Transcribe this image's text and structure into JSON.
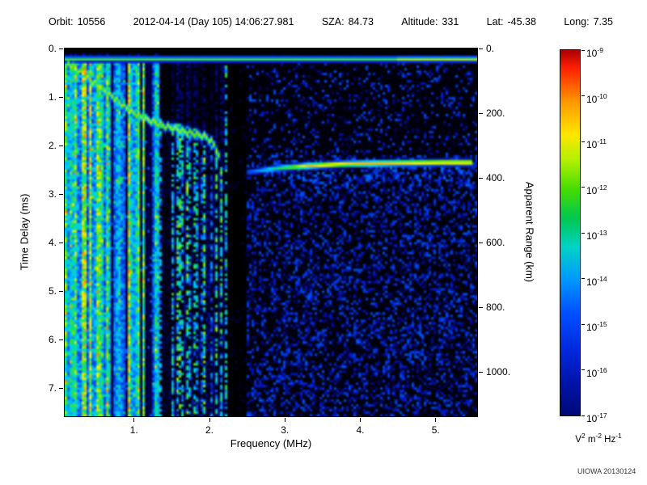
{
  "header": {
    "fields": [
      {
        "label": "Orbit:",
        "value": "10556"
      },
      {
        "label": "",
        "value": "2012-04-14 (Day 105) 14:06:27.981"
      },
      {
        "label": "SZA:",
        "value": "84.73"
      },
      {
        "label": "Altitude:",
        "value": "331"
      },
      {
        "label": "Lat:",
        "value": "-45.38"
      },
      {
        "label": "Long:",
        "value": "7.35"
      }
    ]
  },
  "footer": {
    "credit": "UIOWA 20130124"
  },
  "chart_data": {
    "type": "heatmap",
    "title": "",
    "xlabel": "Frequency (MHz)",
    "ylabel": "Time Delay (ms)",
    "y2label": "Apparent Range (km)",
    "x_range": [
      0.08,
      5.55
    ],
    "y_range": [
      0,
      7.583
    ],
    "x_tick_values": [
      1,
      2,
      3,
      4,
      5
    ],
    "x_tick_labels": [
      "1.",
      "2.",
      "3.",
      "4.",
      "5."
    ],
    "y_tick_values": [
      0,
      1,
      2,
      3,
      4,
      5,
      6,
      7
    ],
    "y_tick_labels": [
      "0.",
      "1.",
      "2.",
      "3.",
      "4.",
      "5.",
      "6.",
      "7."
    ],
    "y2_tick_values_km": [
      0,
      200,
      400,
      600,
      800,
      1000
    ],
    "y2_tick_labels": [
      "0.",
      "200.",
      "400.",
      "600.",
      "800.",
      "1000."
    ],
    "km_per_ms": 150,
    "colorbar": {
      "scale": "log",
      "value_max": 1e-09,
      "value_min": 1e-17,
      "tick_exponents": [
        -9,
        -10,
        -11,
        -12,
        -13,
        -14,
        -15,
        -16,
        -17
      ],
      "unit_parts": [
        {
          "base": "V",
          "exp": "2"
        },
        {
          "base": "m",
          "exp": "-2"
        },
        {
          "base": "Hz",
          "exp": "-1"
        }
      ]
    },
    "render_seed": 20130124,
    "features": {
      "surface_line_ms": 0.22,
      "broadband_noise_max_mhz": 1.35,
      "narrow_gap_mhz": [
        1.36,
        1.48
      ],
      "absorption_gap_mhz": [
        2.25,
        2.5
      ],
      "echo_trace_main_mhz_ms": [
        [
          0.12,
          0.3
        ],
        [
          0.3,
          0.5
        ],
        [
          0.55,
          0.8
        ],
        [
          0.8,
          1.1
        ],
        [
          0.95,
          1.3
        ],
        [
          1.15,
          1.45
        ],
        [
          1.4,
          1.6
        ],
        [
          1.7,
          1.72
        ],
        [
          1.95,
          1.82
        ],
        [
          2.05,
          1.95
        ],
        [
          2.12,
          2.2
        ],
        [
          2.16,
          2.6
        ]
      ],
      "echo_trace_horizontal_mhz_ms": [
        [
          2.5,
          2.55
        ],
        [
          2.9,
          2.47
        ],
        [
          3.3,
          2.42
        ],
        [
          3.8,
          2.38
        ],
        [
          4.5,
          2.36
        ],
        [
          5.1,
          2.35
        ],
        [
          5.5,
          2.35
        ]
      ]
    }
  }
}
